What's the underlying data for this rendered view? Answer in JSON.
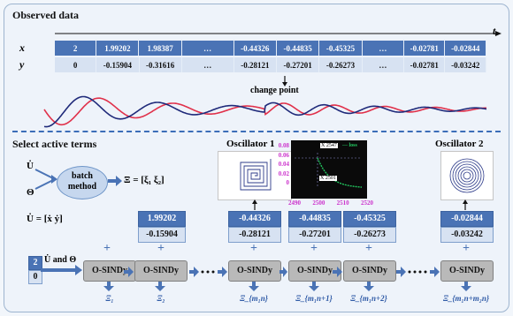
{
  "section_observed": "Observed data",
  "t_label": "t",
  "x_label": "x",
  "y_label": "y",
  "x_row": [
    "2",
    "1.99202",
    "1.98387",
    "…",
    "-0.44326",
    "-0.44835",
    "-0.45325",
    "…",
    "-0.02781",
    "-0.02844"
  ],
  "y_row": [
    "0",
    "-0.15904",
    "-0.31616",
    "…",
    "-0.28121",
    "-0.27201",
    "-0.26273",
    "…",
    "-0.02781",
    "-0.03242"
  ],
  "change_point": "change point",
  "section_select": "Select active terms",
  "udot": "U̇",
  "theta": "Θ",
  "batch_method": "batch method",
  "xi_eq": "Ξ = [ξ₁  ξ₂]",
  "udot_eq": "U̇ = [ẋ  ẏ]",
  "oscillator1": "Oscillator 1",
  "oscillator2": "Oscillator 2",
  "inset": {
    "legend": "loss",
    "marker1": "X 2547",
    "marker2": "X 2501",
    "yticks": [
      "0.08",
      "0.06",
      "0.04",
      "0.02",
      "0"
    ],
    "xticks": [
      "2490",
      "2500",
      "2510",
      "2520"
    ],
    "colors": {
      "loss": "#22c55e",
      "axis_text": "#cc33cc"
    }
  },
  "data_boxes": [
    {
      "top": "1.99202",
      "bottom": "-0.15904"
    },
    {
      "top": "-0.44326",
      "bottom": "-0.28121"
    },
    {
      "top": "-0.44835",
      "bottom": "-0.27201"
    },
    {
      "top": "-0.45325",
      "bottom": "-0.26273"
    },
    {
      "top": "-0.02844",
      "bottom": "-0.03242"
    }
  ],
  "input_values": [
    "2",
    "0"
  ],
  "input_label": "U̇ and Θ",
  "osindy_label": "O-SINDy",
  "xi_labels": [
    "Ξ₁",
    "Ξ₂",
    "Ξ_{m₁n}",
    "Ξ_{m₁n+1}",
    "Ξ_{m₁n+2}",
    "Ξ_{m₁n+m₂n}"
  ],
  "colors": {
    "accent": "#4a73b5",
    "light": "#d7e2f2",
    "red": "#e0304a",
    "navy": "#1f2a7a"
  }
}
